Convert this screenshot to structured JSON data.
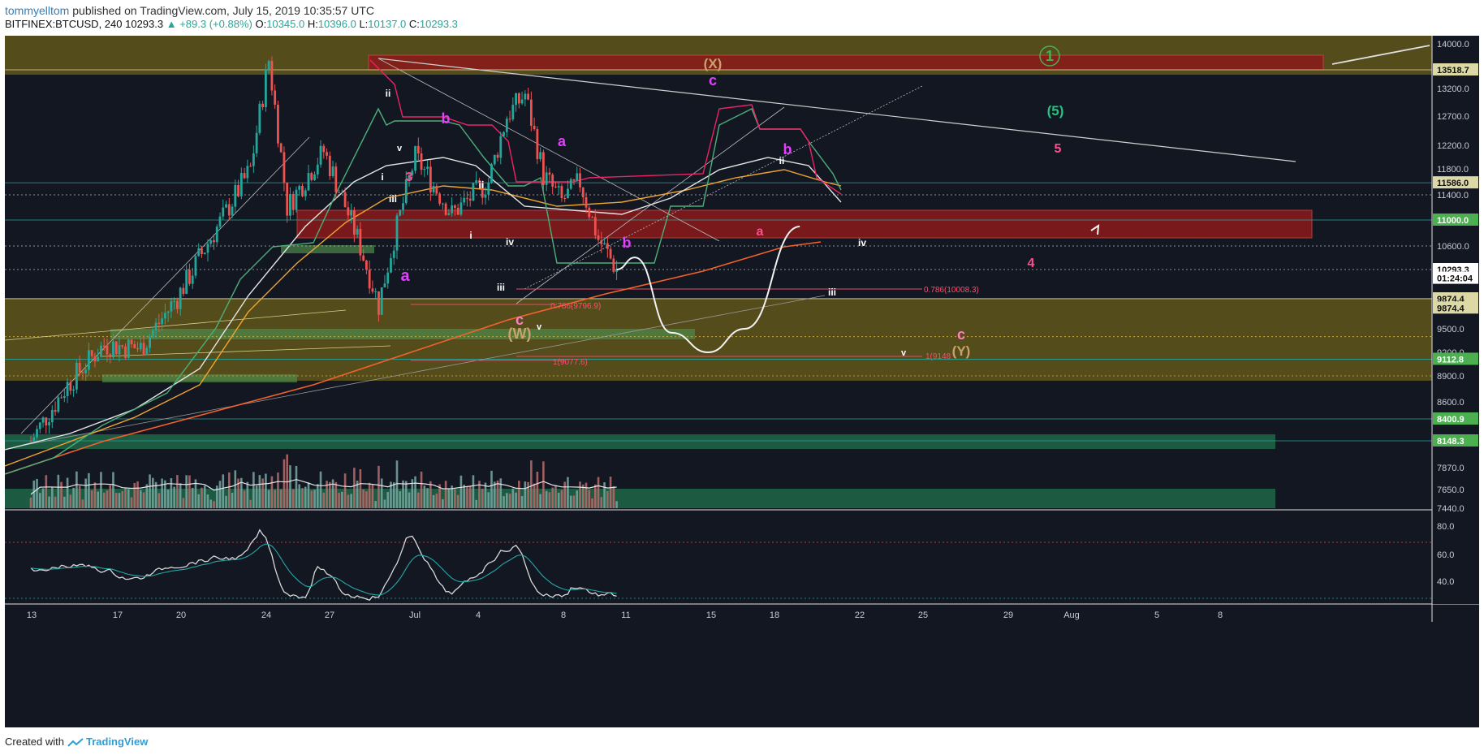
{
  "header": {
    "author": "tommyelltom",
    "published": "published on TradingView.com, July 15, 2019 10:35:57 UTC",
    "symbol": "BITFINEX:BTCUSD, 240",
    "last": "10293.3",
    "change": "▲ +89.3 (+0.88%)",
    "o_label": "O:",
    "o_value": "10345.0",
    "h_label": "H:",
    "h_value": "10396.0",
    "l_label": "L:",
    "l_value": "10137.0",
    "c_label": "C:",
    "c_value": "10293.3"
  },
  "footer": {
    "created": "Created with",
    "brand": "TradingView"
  },
  "colors": {
    "background": "#131722",
    "up": "#26a69a",
    "down": "#ef5350",
    "supply_zone": "#8b1a1a",
    "demand_zone": "#6b5f1a",
    "wave_label": "#e040fb",
    "fib_label": "#ff4d6d"
  },
  "chart_data": {
    "type": "candlestick",
    "price_axis": {
      "ticks": [
        "14000.0",
        "13200.0",
        "12700.0",
        "12200.0",
        "11800.0",
        "11400.0",
        "10600.0",
        "9500.0",
        "9200.0",
        "8900.0",
        "8600.0",
        "7870.0",
        "7650.0",
        "7440.0"
      ],
      "badges": [
        {
          "label": "13518.7",
          "price": 13518.7,
          "color": "#dcd9a6",
          "text": "#111"
        },
        {
          "label": "11586.0",
          "price": 11586.0,
          "color": "#dcd9a6",
          "text": "#111"
        },
        {
          "label": "11000.0",
          "price": 11000.0,
          "color": "#4caf50",
          "text": "#fff"
        },
        {
          "label": "10293.3",
          "price": 10293.3,
          "color": "#ffffff",
          "text": "#111"
        },
        {
          "label": "01:24:04",
          "price": 10170,
          "color": "#ffffff",
          "text": "#111"
        },
        {
          "label": "9874.4",
          "price": 9874.4,
          "color": "#dcd9a6",
          "text": "#111"
        },
        {
          "label": "9874.4",
          "price": 9760,
          "color": "#dcd9a6",
          "text": "#111"
        },
        {
          "label": "9112.8",
          "price": 9112.8,
          "color": "#4caf50",
          "text": "#fff"
        },
        {
          "label": "8400.9",
          "price": 8400.9,
          "color": "#4caf50",
          "text": "#fff"
        },
        {
          "label": "8148.3",
          "price": 8148.3,
          "color": "#4caf50",
          "text": "#fff"
        }
      ]
    },
    "time_axis": [
      "13",
      "17",
      "20",
      "24",
      "27",
      "Jul",
      "4",
      "8",
      "11",
      "15",
      "18",
      "22",
      "25",
      "29",
      "Aug",
      "5",
      "8"
    ],
    "rsi_axis": [
      "80.0",
      "60.0",
      "40.0"
    ],
    "current_price": 10293.3,
    "close_path": [
      [
        "Jun 13",
        8150
      ],
      [
        "Jun 15",
        8800
      ],
      [
        "Jun 17",
        9300
      ],
      [
        "Jun 19",
        9250
      ],
      [
        "Jun 21",
        9900
      ],
      [
        "Jun 23",
        10800
      ],
      [
        "Jun 25",
        11800
      ],
      [
        "Jun 26",
        13700
      ],
      [
        "Jun 27",
        11200
      ],
      [
        "Jun 29",
        12100
      ],
      [
        "Jul 1",
        10600
      ],
      [
        "Jul 2",
        9800
      ],
      [
        "Jul 4",
        12000
      ],
      [
        "Jul 6",
        11100
      ],
      [
        "Jul 8",
        11600
      ],
      [
        "Jul 9",
        12700
      ],
      [
        "Jul 10",
        13100
      ],
      [
        "Jul 11",
        11700
      ],
      [
        "Jul 12",
        11300
      ],
      [
        "Jul 13",
        11600
      ],
      [
        "Jul 14",
        10700
      ],
      [
        "Jul 15",
        10293.3
      ]
    ],
    "projection": [
      [
        "Jul 15",
        10293.3
      ],
      [
        "Jul 16",
        10450
      ],
      [
        "Jul 18",
        9450
      ],
      [
        "Jul 20",
        9200
      ],
      [
        "Jul 22",
        9500
      ],
      [
        "Jul 25",
        10900
      ]
    ],
    "wave_labels": [
      {
        "text": "(X)",
        "color": "#c8a46a"
      },
      {
        "text": "c",
        "color": "#e040fb"
      },
      {
        "text": "1",
        "color": "#4caf50"
      },
      {
        "text": "(5)",
        "color": "#26c281"
      },
      {
        "text": "5",
        "color": "#ff4d8d"
      },
      {
        "text": "b",
        "color": "#e040fb"
      },
      {
        "text": "b",
        "color": "#e040fb"
      },
      {
        "text": "a",
        "color": "#e040fb"
      },
      {
        "text": "a",
        "color": "#e040fb"
      },
      {
        "text": "b",
        "color": "#e040fb"
      },
      {
        "text": "a",
        "color": "#ff4d8d"
      },
      {
        "text": "3",
        "color": "#ff4d8d"
      },
      {
        "text": "4",
        "color": "#ff4d8d"
      },
      {
        "text": "c",
        "color": "#ff7fbf"
      },
      {
        "text": "c",
        "color": "#ff7fbf"
      },
      {
        "text": "(W)",
        "color": "#c8a46a"
      },
      {
        "text": "(Y)",
        "color": "#c8a46a"
      },
      {
        "text": "ii",
        "color": "#ffffff"
      },
      {
        "text": "i",
        "color": "#ffffff"
      },
      {
        "text": "iii",
        "color": "#ffffff"
      },
      {
        "text": "v",
        "color": "#ffffff"
      },
      {
        "text": "ii",
        "color": "#ffffff"
      },
      {
        "text": "i",
        "color": "#ffffff"
      },
      {
        "text": "iv",
        "color": "#ffffff"
      },
      {
        "text": "iii",
        "color": "#ffffff"
      },
      {
        "text": "v",
        "color": "#ffffff"
      },
      {
        "text": "ii",
        "color": "#ffffff"
      },
      {
        "text": "iv",
        "color": "#ffffff"
      },
      {
        "text": "iii",
        "color": "#ffffff"
      },
      {
        "text": "v",
        "color": "#ffffff"
      }
    ],
    "fib_labels": [
      {
        "text": "0.786(10008.3)"
      },
      {
        "text": "0.786(9796.9)"
      },
      {
        "text": "1(9077.6)"
      },
      {
        "text": "1(9148"
      }
    ]
  }
}
